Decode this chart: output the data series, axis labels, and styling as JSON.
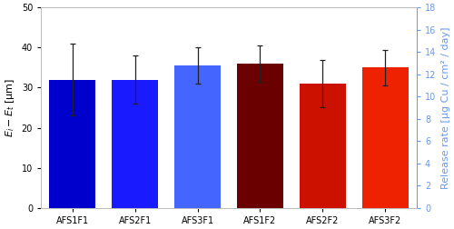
{
  "categories": [
    "AFS1F1",
    "AFS2F1",
    "AFS3F1",
    "AFS1F2",
    "AFS2F2",
    "AFS3F2"
  ],
  "bar_values": [
    32.0,
    32.0,
    35.5,
    36.0,
    31.0,
    35.0
  ],
  "bar_errors": [
    9.0,
    6.0,
    4.5,
    4.5,
    6.0,
    4.5
  ],
  "bar_colors": [
    "#0000cc",
    "#1a1aff",
    "#4466ff",
    "#6b0000",
    "#cc1100",
    "#ee2200"
  ],
  "ylabel_left": "$E_i - E_t$ [μm]",
  "ylabel_right": "Release rate [μg Cu / cm² / day]",
  "ylim_left": [
    0,
    50
  ],
  "ylim_right": [
    0,
    18
  ],
  "yticks_left": [
    0,
    10,
    20,
    30,
    40,
    50
  ],
  "yticks_right": [
    0,
    2,
    4,
    6,
    8,
    10,
    12,
    14,
    16,
    18
  ],
  "bar_width": 0.75,
  "background_color": "#ffffff",
  "errorbar_color": "#222222",
  "left_axis_color": "#000000",
  "right_axis_color": "#6699ee",
  "tick_fontsize": 7,
  "label_fontsize": 8
}
